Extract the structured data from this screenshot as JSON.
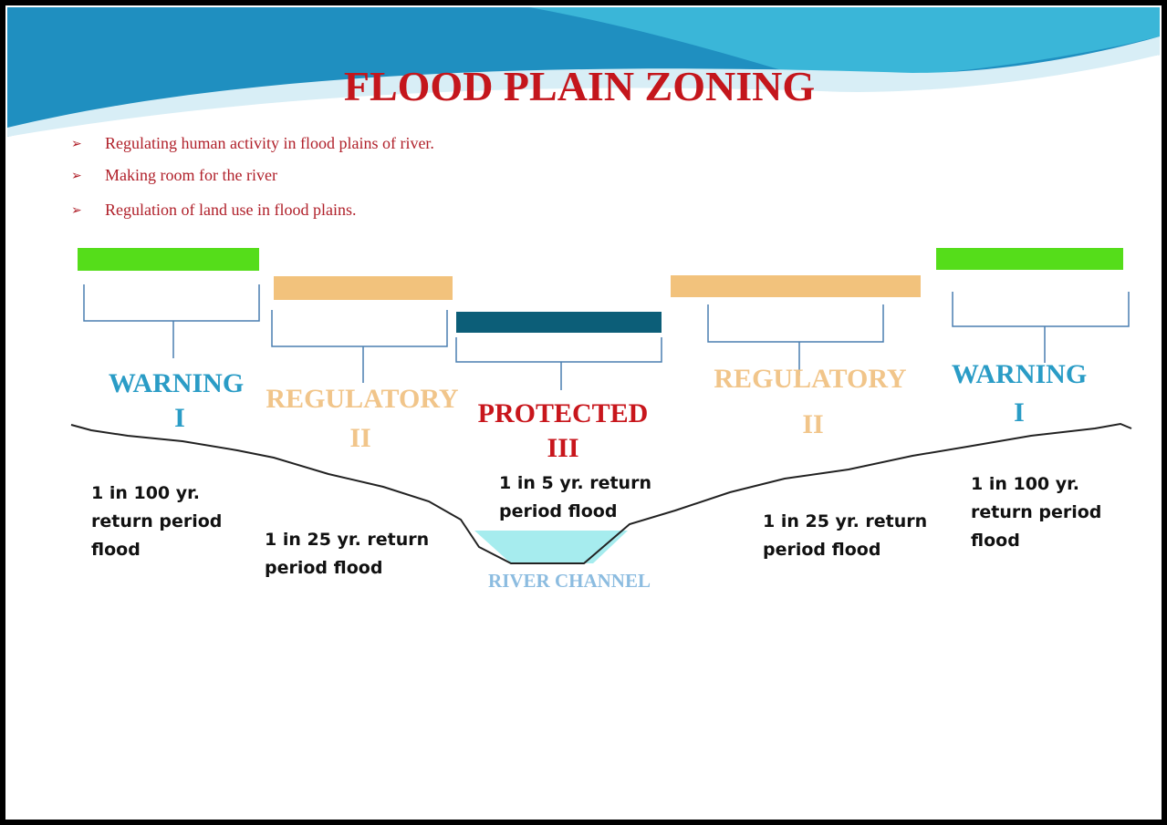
{
  "title": "FLOOD PLAIN ZONING",
  "bullets": [
    "Regulating human activity in flood plains of river.",
    "Making room for the river",
    "Regulation of land use in flood plains."
  ],
  "zones": [
    {
      "name": "WARNING",
      "numeral": "I",
      "flood": [
        "1 in 100 yr.",
        "return period",
        "flood"
      ]
    },
    {
      "name": "REGULATORY",
      "numeral": "II",
      "flood": [
        "1 in 25 yr. return",
        "period flood"
      ]
    },
    {
      "name": "PROTECTED",
      "numeral": "III",
      "flood": [
        "1 in 5 yr. return",
        "period flood"
      ]
    },
    {
      "name": "REGULATORY",
      "numeral": "II",
      "flood": [
        "1 in 25 yr. return",
        "period flood"
      ]
    },
    {
      "name": "WARNING",
      "numeral": "I",
      "flood": [
        "1 in 100 yr.",
        "return period",
        "flood"
      ]
    }
  ],
  "river_label": "RIVER CHANNEL"
}
